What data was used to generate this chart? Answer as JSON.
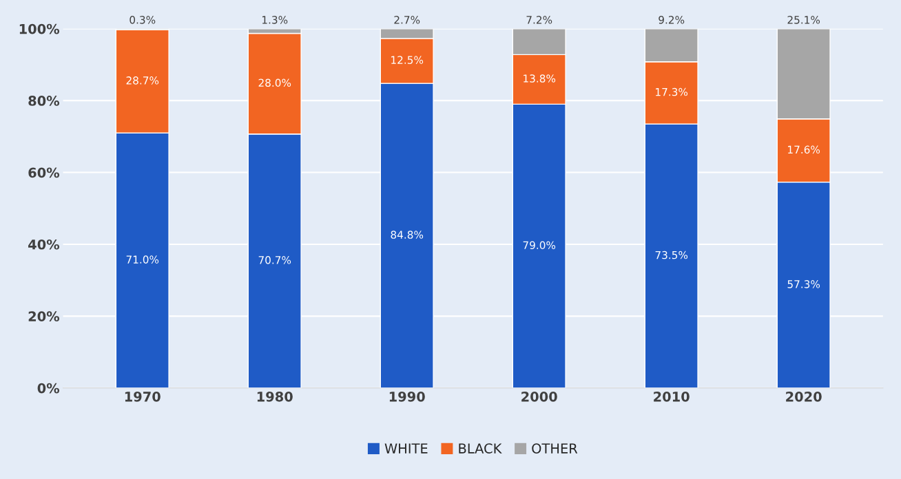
{
  "chart_data": {
    "type": "bar",
    "stacked": true,
    "categories": [
      "1970",
      "1980",
      "1990",
      "2000",
      "2010",
      "2020"
    ],
    "series": [
      {
        "name": "WHITE",
        "color": "#1f5bc6",
        "values": [
          71.0,
          70.7,
          84.8,
          79.0,
          73.5,
          57.3
        ],
        "value_labels": [
          "71.0%",
          "70.7%",
          "84.8%",
          "79.0%",
          "73.5%",
          "57.3%"
        ]
      },
      {
        "name": "BLACK",
        "color": "#f26522",
        "values": [
          28.7,
          28.0,
          12.5,
          13.8,
          17.3,
          17.6
        ],
        "value_labels": [
          "28.7%",
          "28.0%",
          "12.5%",
          "13.8%",
          "17.3%",
          "17.6%"
        ]
      },
      {
        "name": "OTHER",
        "color": "#a6a6a6",
        "values": [
          0.3,
          1.3,
          2.7,
          7.2,
          9.2,
          25.1
        ],
        "value_labels": [
          "0.3%",
          "1.3%",
          "2.7%",
          "7.2%",
          "9.2%",
          "25.1%"
        ]
      }
    ],
    "ylim": [
      0,
      100
    ],
    "yticks": [
      {
        "value": 0,
        "label": "0%"
      },
      {
        "value": 20,
        "label": "20%"
      },
      {
        "value": 40,
        "label": "40%"
      },
      {
        "value": 60,
        "label": "60%"
      },
      {
        "value": 80,
        "label": "80%"
      },
      {
        "value": 100,
        "label": "100%"
      }
    ],
    "grid": "y",
    "legend": "bottom"
  }
}
